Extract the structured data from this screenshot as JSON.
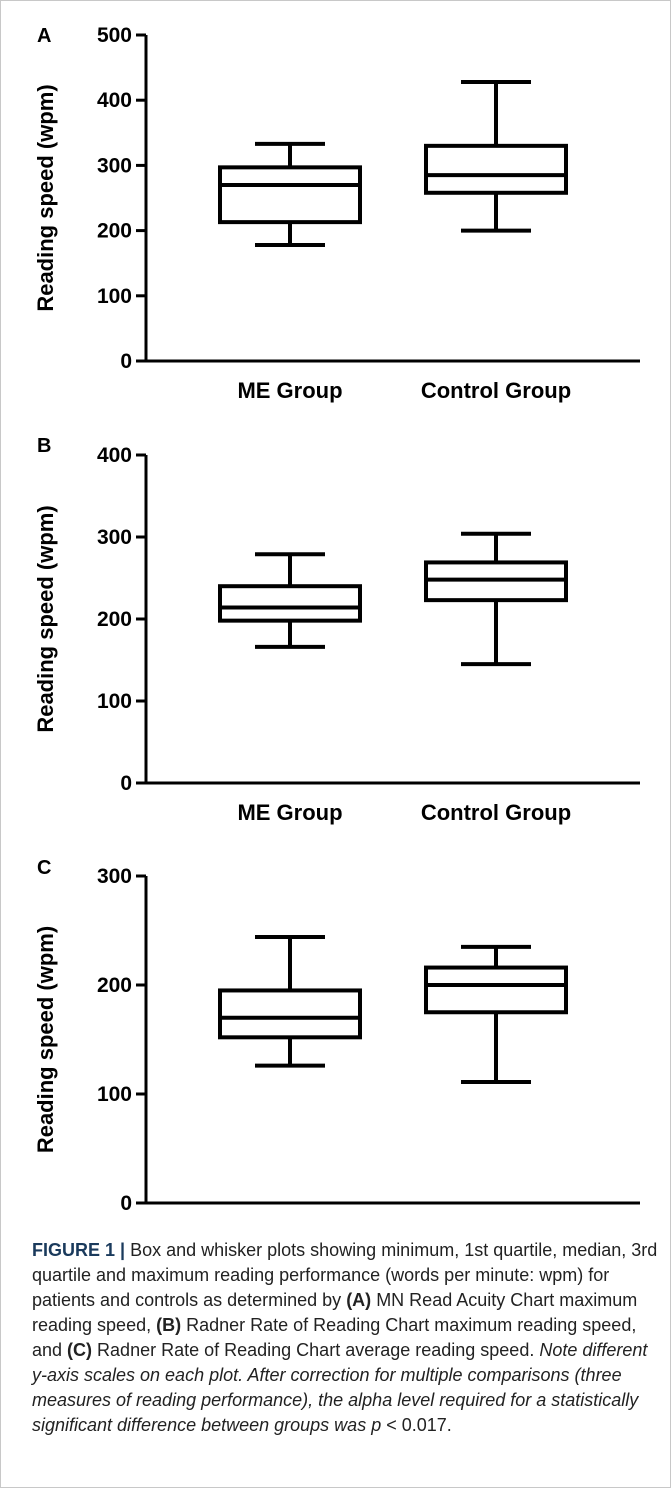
{
  "chart_data": [
    {
      "panel": "A",
      "type": "box",
      "ylabel": "Reading speed (wpm)",
      "ylim": [
        0,
        500
      ],
      "yticks": [
        0,
        100,
        200,
        300,
        400,
        500
      ],
      "categories": [
        "ME Group",
        "Control Group"
      ],
      "boxes": [
        {
          "category": "ME Group",
          "min": 178,
          "q1": 213,
          "median": 270,
          "q3": 297,
          "max": 333
        },
        {
          "category": "Control Group",
          "min": 200,
          "q1": 258,
          "median": 285,
          "q3": 330,
          "max": 428
        }
      ]
    },
    {
      "panel": "B",
      "type": "box",
      "ylabel": "Reading speed (wpm)",
      "ylim": [
        0,
        400
      ],
      "yticks": [
        0,
        100,
        200,
        300,
        400
      ],
      "categories": [
        "ME Group",
        "Control Group"
      ],
      "boxes": [
        {
          "category": "ME Group",
          "min": 166,
          "q1": 198,
          "median": 214,
          "q3": 240,
          "max": 279
        },
        {
          "category": "Control Group",
          "min": 145,
          "q1": 223,
          "median": 248,
          "q3": 269,
          "max": 304
        }
      ]
    },
    {
      "panel": "C",
      "type": "box",
      "ylabel": "Reading speed (wpm)",
      "ylim": [
        0,
        300
      ],
      "yticks": [
        0,
        100,
        200,
        300
      ],
      "categories": [
        "ME Group",
        "Control Group"
      ],
      "boxes": [
        {
          "category": "ME Group",
          "min": 126,
          "q1": 152,
          "median": 170,
          "q3": 195,
          "max": 244
        },
        {
          "category": "Control Group",
          "min": 111,
          "q1": 175,
          "median": 200,
          "q3": 216,
          "max": 235
        }
      ]
    }
  ],
  "caption": {
    "figure_label": "FIGURE 1 |",
    "part1": " Box and whisker plots showing minimum, 1st quartile, median, 3rd quartile and maximum reading performance (words per minute: wpm) for patients and controls as determined by ",
    "ref_a": "(A)",
    "part2": " MN Read Acuity Chart maximum reading speed, ",
    "ref_b": "(B)",
    "part3": " Radner Rate of Reading Chart maximum reading speed, and ",
    "ref_c": "(C)",
    "part4": " Radner Rate of Reading Chart average reading speed. ",
    "note": "Note different y-axis scales on each plot. After correction for multiple comparisons (three measures of reading performance), the alpha level required for a statistically significant difference between groups was p",
    "part5": " < 0.017."
  }
}
